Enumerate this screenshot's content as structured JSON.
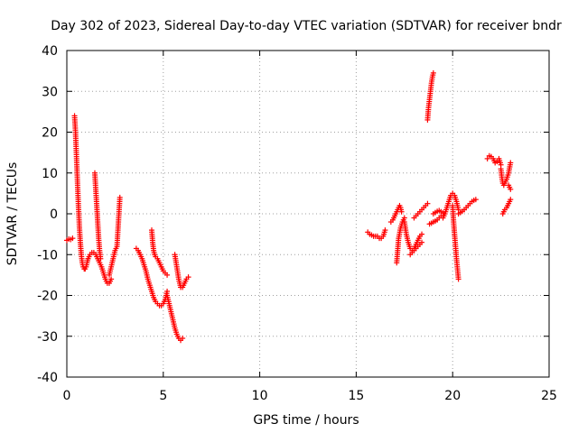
{
  "chart_data": {
    "type": "scatter",
    "title": "Day 302 of 2023, Sidereal Day-to-day VTEC variation (SDTVAR) for receiver bndr",
    "xlabel": "GPS time / hours",
    "ylabel": "SDTVAR / TECUs",
    "xlim": [
      0,
      25
    ],
    "ylim": [
      -40,
      40
    ],
    "x_ticks": [
      0,
      5,
      10,
      15,
      20,
      25
    ],
    "y_ticks": [
      -40,
      -30,
      -20,
      -10,
      0,
      10,
      20,
      30,
      40
    ],
    "grid": true,
    "marker": "+",
    "color": "#ff0000",
    "series": [
      {
        "name": "seg1",
        "x": [
          0.0,
          0.1,
          0.2,
          0.3
        ],
        "y": [
          -6.5,
          -6.2,
          -6.3,
          -6.0
        ]
      },
      {
        "name": "seg2",
        "x": [
          0.4,
          0.45,
          0.5,
          0.55,
          0.6,
          0.65,
          0.7,
          0.75,
          0.8,
          0.85,
          0.9,
          0.95,
          1.0,
          1.05,
          1.1
        ],
        "y": [
          24,
          20,
          14,
          8,
          2,
          -3,
          -7,
          -10,
          -12,
          -13,
          -13.5,
          -13.5,
          -13,
          -12,
          -11
        ]
      },
      {
        "name": "seg3",
        "x": [
          1.1,
          1.2,
          1.3,
          1.4,
          1.5,
          1.6,
          1.7,
          1.8,
          1.9,
          2.0,
          2.1,
          2.2,
          2.3
        ],
        "y": [
          -11,
          -10,
          -9.5,
          -9.5,
          -10,
          -11,
          -12,
          -13,
          -14.5,
          -16,
          -17,
          -17,
          -16
        ]
      },
      {
        "name": "seg4",
        "x": [
          1.45,
          1.5,
          1.55,
          1.6,
          1.65,
          1.7,
          1.75
        ],
        "y": [
          10,
          6,
          2,
          -2,
          -6,
          -9,
          -11
        ]
      },
      {
        "name": "seg5",
        "x": [
          2.2,
          2.3,
          2.4,
          2.5,
          2.6,
          2.65,
          2.7,
          2.75
        ],
        "y": [
          -15,
          -13,
          -11,
          -9,
          -8,
          -4,
          0,
          4
        ]
      },
      {
        "name": "seg6",
        "x": [
          3.6,
          3.7,
          3.8,
          3.9,
          4.0,
          4.1,
          4.2,
          4.3,
          4.4,
          4.5,
          4.6,
          4.7,
          4.8,
          4.9,
          5.0,
          5.1,
          5.2
        ],
        "y": [
          -8.5,
          -9,
          -10,
          -11,
          -12.5,
          -14,
          -16,
          -17.5,
          -19,
          -20.5,
          -21.5,
          -22,
          -22.5,
          -22.5,
          -22,
          -21,
          -19
        ]
      },
      {
        "name": "seg7",
        "x": [
          4.4,
          4.45,
          4.5,
          4.55,
          4.6,
          4.7,
          4.8,
          4.9,
          5.0,
          5.1,
          5.2
        ],
        "y": [
          -4,
          -7,
          -9,
          -10,
          -10.5,
          -11,
          -12,
          -13,
          -14,
          -14.5,
          -15
        ]
      },
      {
        "name": "seg8",
        "x": [
          5.2,
          5.3,
          5.4,
          5.5,
          5.6,
          5.7,
          5.8,
          5.9,
          6.0
        ],
        "y": [
          -20,
          -22,
          -24,
          -26,
          -28,
          -29.5,
          -30.5,
          -31,
          -30.5
        ]
      },
      {
        "name": "seg9",
        "x": [
          5.6,
          5.7,
          5.8,
          5.9,
          6.0,
          6.1,
          6.2,
          6.3
        ],
        "y": [
          -10,
          -13,
          -16,
          -18,
          -18,
          -17,
          -16,
          -15.5
        ]
      },
      {
        "name": "seg10",
        "x": [
          15.6,
          15.7,
          15.8,
          15.9,
          16.0,
          16.1,
          16.2,
          16.3,
          16.4,
          16.5
        ],
        "y": [
          -4.5,
          -5,
          -5.2,
          -5.5,
          -5.5,
          -5.5,
          -6,
          -6,
          -5.5,
          -4
        ]
      },
      {
        "name": "seg11",
        "x": [
          16.8,
          16.9,
          17.0,
          17.1,
          17.2,
          17.25,
          17.3,
          17.35
        ],
        "y": [
          -2,
          -1.5,
          -0.5,
          0.5,
          1.5,
          2,
          1.5,
          0.5
        ]
      },
      {
        "name": "seg12",
        "x": [
          17.1,
          17.15,
          17.2,
          17.3,
          17.4,
          17.5
        ],
        "y": [
          -12,
          -9,
          -6,
          -3.5,
          -2,
          -1
        ]
      },
      {
        "name": "seg13",
        "x": [
          17.5,
          17.6,
          17.7,
          17.8,
          17.9,
          18.0,
          18.1,
          18.2,
          18.3,
          18.4
        ],
        "y": [
          -2,
          -5,
          -7,
          -8.5,
          -9,
          -8.5,
          -7.5,
          -6.5,
          -5.5,
          -5
        ]
      },
      {
        "name": "seg14",
        "x": [
          17.8,
          17.9,
          18.0,
          18.1,
          18.2,
          18.3,
          18.4
        ],
        "y": [
          -10,
          -9.5,
          -9,
          -8.5,
          -8,
          -7.5,
          -7
        ]
      },
      {
        "name": "seg15",
        "x": [
          18.0,
          18.1,
          18.2,
          18.3,
          18.4,
          18.5,
          18.6,
          18.7
        ],
        "y": [
          -1,
          -0.5,
          0,
          0.5,
          1,
          1.5,
          2,
          2.5
        ]
      },
      {
        "name": "seg16",
        "x": [
          18.7,
          18.75,
          18.8,
          18.85,
          18.9,
          18.95,
          19.0
        ],
        "y": [
          23,
          26,
          28,
          30,
          32,
          33.5,
          34.5
        ]
      },
      {
        "name": "seg17",
        "x": [
          18.8,
          18.9,
          19.0,
          19.1,
          19.2,
          19.3,
          19.4
        ],
        "y": [
          -2.5,
          -2.3,
          -2,
          -1.8,
          -1.5,
          -1,
          -0.5
        ]
      },
      {
        "name": "seg18",
        "x": [
          19.0,
          19.1,
          19.2,
          19.3,
          19.4,
          19.5
        ],
        "y": [
          0,
          0.3,
          0.6,
          0.8,
          0.5,
          0.2
        ]
      },
      {
        "name": "seg19",
        "x": [
          19.5,
          19.6,
          19.7,
          19.8,
          19.9,
          20.0,
          20.1,
          20.2,
          20.3
        ],
        "y": [
          -1,
          0,
          1.5,
          3,
          4.5,
          5,
          4.5,
          3,
          1
        ]
      },
      {
        "name": "seg20",
        "x": [
          20.0,
          20.05,
          20.1,
          20.15,
          20.2,
          20.25,
          20.3
        ],
        "y": [
          2,
          -2,
          -5,
          -8,
          -11,
          -13.5,
          -16
        ]
      },
      {
        "name": "seg21",
        "x": [
          20.3,
          20.4,
          20.5,
          20.6,
          20.7,
          20.8,
          20.9,
          21.0,
          21.1,
          21.2
        ],
        "y": [
          0,
          0.3,
          0.6,
          1,
          1.5,
          2,
          2.5,
          3,
          3.3,
          3.5
        ]
      },
      {
        "name": "seg22",
        "x": [
          21.8,
          21.9,
          22.0,
          22.1,
          22.2,
          22.3,
          22.4,
          22.5
        ],
        "y": [
          13.5,
          14.2,
          14.0,
          13.5,
          12.5,
          12.8,
          13.5,
          12
        ]
      },
      {
        "name": "seg23",
        "x": [
          22.5,
          22.55,
          22.6,
          22.65,
          22.7,
          22.8,
          22.9,
          23.0
        ],
        "y": [
          11,
          9,
          7.5,
          7,
          7.5,
          8.5,
          10,
          12.5
        ]
      },
      {
        "name": "seg24",
        "x": [
          22.6,
          22.7,
          22.8,
          22.9,
          23.0
        ],
        "y": [
          0,
          1,
          1.5,
          2.5,
          3.5
        ]
      },
      {
        "name": "seg25",
        "x": [
          22.9,
          22.95,
          23.0
        ],
        "y": [
          7,
          6.5,
          6
        ]
      }
    ]
  }
}
